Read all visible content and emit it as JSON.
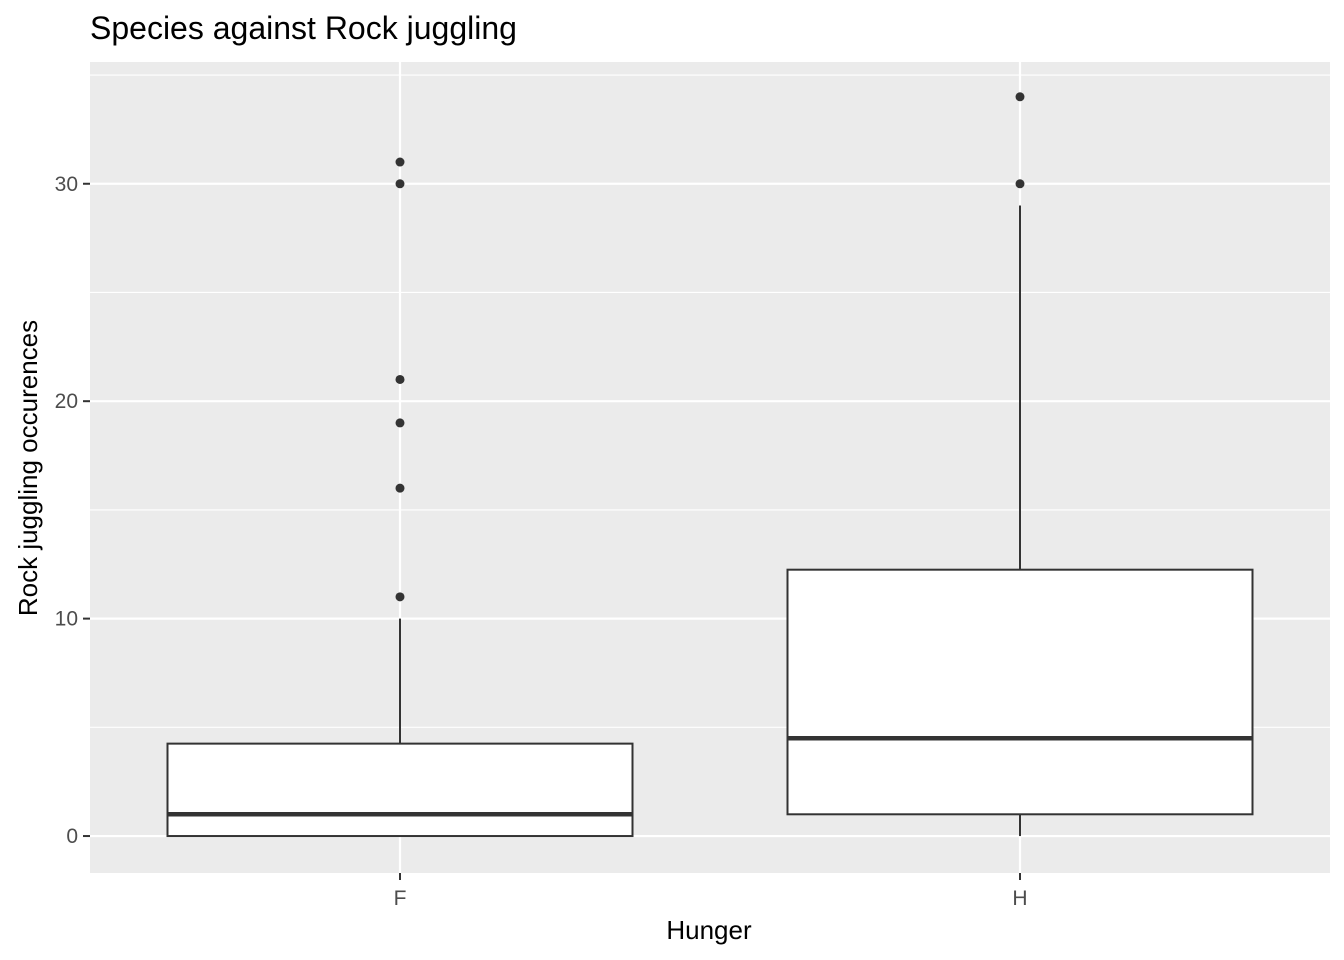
{
  "chart_data": {
    "type": "boxplot",
    "title": "Species against Rock juggling",
    "xlabel": "Hunger",
    "ylabel": "Rock juggling occurences",
    "categories": [
      "F",
      "H"
    ],
    "ylim": [
      -1.7,
      35.6
    ],
    "y_ticks": [
      0,
      10,
      20,
      30
    ],
    "y_minor_ticks": [
      5,
      15,
      25,
      35
    ],
    "grid": true,
    "legend": "none",
    "boxes": [
      {
        "category": "F",
        "whisker_low": 0,
        "q1": 0,
        "median": 1,
        "q3": 4.25,
        "whisker_high": 10,
        "outliers": [
          11,
          16,
          19,
          21,
          30,
          31
        ]
      },
      {
        "category": "H",
        "whisker_low": 0,
        "q1": 1,
        "median": 4.5,
        "q3": 12.25,
        "whisker_high": 29,
        "outliers": [
          30,
          34
        ]
      }
    ],
    "colors": {
      "panel_background": "#ebebeb",
      "grid_major": "#ffffff",
      "box_fill": "#ffffff",
      "box_line": "#333333",
      "outlier": "#333333",
      "tick_label": "#4d4d4d",
      "axis_title": "#000000"
    }
  }
}
